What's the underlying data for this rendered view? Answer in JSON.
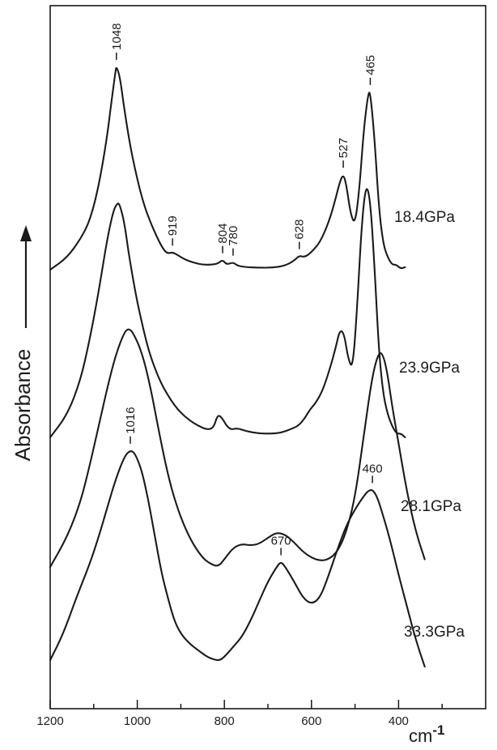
{
  "chart_data": {
    "type": "line",
    "title": "",
    "xlabel": "cm",
    "xlabel_superscript": "-1",
    "ylabel": "Absorbance",
    "x_reversed": true,
    "xlim": [
      1200,
      200
    ],
    "xticks": [
      1200,
      1000,
      800,
      600,
      400
    ],
    "x_minor_ticks": [
      1100,
      900,
      700,
      500,
      300
    ],
    "y_tick_labels": false,
    "grid": false,
    "series": [
      {
        "name": "18.4GPa",
        "x": [
          1200,
          1160,
          1130,
          1110,
          1090,
          1070,
          1060,
          1050,
          1048,
          1040,
          1030,
          1015,
          1000,
          985,
          970,
          955,
          940,
          930,
          919,
          905,
          890,
          870,
          850,
          830,
          815,
          804,
          795,
          780,
          770,
          750,
          720,
          690,
          660,
          640,
          628,
          615,
          600,
          580,
          560,
          545,
          535,
          527,
          520,
          510,
          500,
          490,
          480,
          470,
          465,
          455,
          445,
          435,
          425,
          415,
          405,
          395,
          385
        ],
        "y": [
          0.0,
          0.25,
          0.62,
          0.95,
          1.6,
          2.6,
          3.3,
          3.95,
          4.05,
          3.85,
          3.2,
          2.4,
          1.8,
          1.3,
          0.95,
          0.65,
          0.4,
          0.32,
          0.35,
          0.28,
          0.2,
          0.14,
          0.1,
          0.1,
          0.12,
          0.2,
          0.1,
          0.15,
          0.08,
          0.05,
          0.04,
          0.04,
          0.08,
          0.18,
          0.28,
          0.25,
          0.35,
          0.55,
          0.95,
          1.4,
          1.75,
          1.9,
          1.7,
          1.1,
          0.9,
          1.6,
          2.8,
          3.5,
          3.55,
          2.6,
          1.2,
          0.5,
          0.25,
          0.1,
          0.1,
          0.02,
          0.05
        ]
      },
      {
        "name": "23.9GPa",
        "x": [
          1200,
          1160,
          1130,
          1110,
          1090,
          1070,
          1055,
          1045,
          1040,
          1030,
          1020,
          1005,
          990,
          975,
          960,
          945,
          930,
          915,
          900,
          880,
          860,
          840,
          825,
          815,
          805,
          795,
          785,
          770,
          750,
          720,
          690,
          670,
          650,
          630,
          615,
          605,
          590,
          575,
          560,
          545,
          535,
          525,
          515,
          505,
          495,
          485,
          475,
          465,
          455,
          445,
          435,
          425,
          415,
          405,
          395,
          385
        ],
        "y": [
          0.0,
          0.3,
          0.75,
          1.25,
          1.85,
          2.55,
          2.95,
          3.05,
          3.02,
          2.8,
          2.4,
          1.9,
          1.5,
          1.15,
          0.9,
          0.7,
          0.55,
          0.42,
          0.32,
          0.22,
          0.15,
          0.1,
          0.12,
          0.3,
          0.25,
          0.15,
          0.1,
          0.12,
          0.08,
          0.05,
          0.05,
          0.06,
          0.1,
          0.15,
          0.25,
          0.35,
          0.45,
          0.6,
          0.85,
          1.15,
          1.4,
          1.35,
          1.0,
          0.9,
          1.7,
          2.75,
          3.3,
          3.1,
          2.2,
          1.1,
          0.55,
          0.3,
          0.15,
          0.05,
          0.05,
          0.0
        ]
      },
      {
        "name": "28.1GPa",
        "x": [
          1200,
          1160,
          1130,
          1110,
          1090,
          1070,
          1050,
          1030,
          1020,
          1010,
          990,
          970,
          950,
          930,
          910,
          890,
          870,
          850,
          835,
          815,
          800,
          780,
          760,
          740,
          720,
          700,
          680,
          660,
          640,
          620,
          600,
          580,
          560,
          540,
          520,
          500,
          480,
          460,
          445,
          435,
          425,
          415,
          400,
          380,
          360,
          340
        ],
        "y": [
          0.0,
          0.4,
          0.85,
          1.3,
          1.8,
          2.3,
          2.75,
          3.05,
          3.1,
          3.05,
          2.8,
          2.35,
          1.75,
          1.2,
          0.8,
          0.5,
          0.28,
          0.12,
          0.05,
          0.0,
          0.1,
          0.25,
          0.3,
          0.28,
          0.3,
          0.38,
          0.45,
          0.42,
          0.32,
          0.2,
          0.12,
          0.08,
          0.1,
          0.2,
          0.45,
          0.9,
          1.7,
          2.5,
          2.8,
          2.75,
          2.5,
          2.1,
          1.6,
          0.95,
          0.45,
          0.1
        ]
      },
      {
        "name": "33.3GPa",
        "x": [
          1200,
          1170,
          1140,
          1110,
          1090,
          1070,
          1050,
          1030,
          1016,
          1005,
          990,
          975,
          960,
          945,
          930,
          915,
          900,
          880,
          860,
          840,
          820,
          810,
          800,
          780,
          760,
          740,
          720,
          700,
          680,
          670,
          660,
          640,
          620,
          600,
          580,
          560,
          540,
          520,
          500,
          480,
          470,
          460,
          450,
          440,
          420,
          400,
          380,
          360,
          340
        ],
        "y": [
          0.0,
          0.4,
          0.95,
          1.45,
          1.85,
          2.3,
          2.75,
          3.1,
          3.2,
          3.15,
          2.9,
          2.45,
          1.9,
          1.35,
          0.95,
          0.6,
          0.4,
          0.25,
          0.15,
          0.05,
          0.0,
          0.0,
          0.05,
          0.2,
          0.35,
          0.6,
          0.9,
          1.2,
          1.42,
          1.5,
          1.42,
          1.2,
          0.95,
          0.85,
          0.95,
          1.3,
          1.7,
          2.05,
          2.3,
          2.5,
          2.58,
          2.6,
          2.5,
          2.3,
          1.85,
          1.3,
          0.8,
          0.3,
          -0.1
        ]
      }
    ],
    "peak_labels": [
      {
        "series": "18.4GPa",
        "x": 1048,
        "label": "1048"
      },
      {
        "series": "18.4GPa",
        "x": 919,
        "label": "919"
      },
      {
        "series": "18.4GPa",
        "x": 804,
        "label": "804"
      },
      {
        "series": "18.4GPa",
        "x": 780,
        "label": "780"
      },
      {
        "series": "18.4GPa",
        "x": 628,
        "label": "628"
      },
      {
        "series": "18.4GPa",
        "x": 527,
        "label": "527"
      },
      {
        "series": "18.4GPa",
        "x": 465,
        "label": "465"
      },
      {
        "series": "33.3GPa",
        "x": 1016,
        "label": "1016"
      },
      {
        "series": "33.3GPa",
        "x": 670,
        "label": "670"
      },
      {
        "series": "33.3GPa",
        "x": 460,
        "label": "460"
      }
    ]
  }
}
